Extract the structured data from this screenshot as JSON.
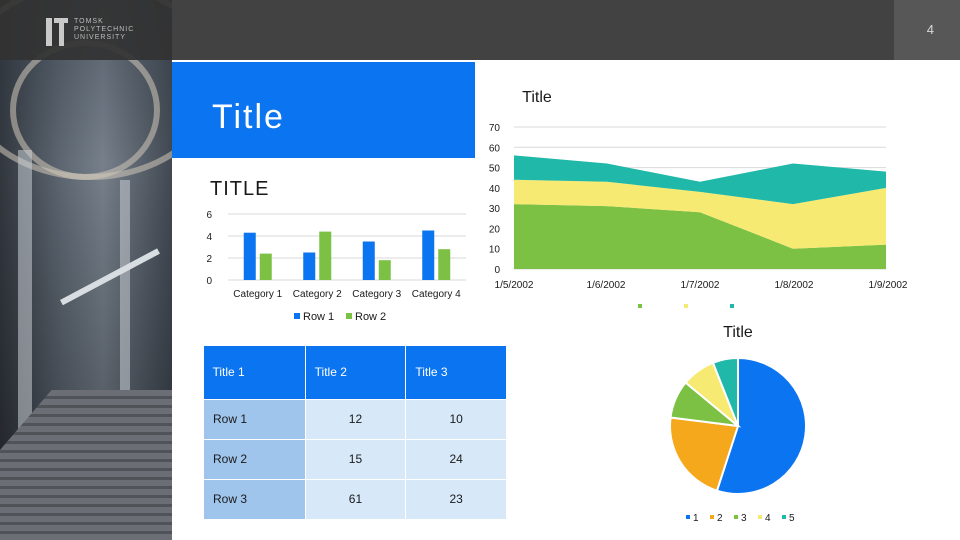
{
  "header": {
    "page_number": "4",
    "logo_text": [
      "TOMSK",
      "POLYTECHNIC",
      "UNIVERSITY"
    ]
  },
  "title_panel": {
    "title": "Title"
  },
  "bar_chart": {
    "title": "TITLE",
    "legend": [
      "Row 1",
      "Row 2"
    ]
  },
  "table": {
    "headers": [
      "Title 1",
      "Title 2",
      "Title 3"
    ],
    "rows": [
      {
        "label": "Row 1",
        "v1": "12",
        "v2": "10"
      },
      {
        "label": "Row 2",
        "v1": "15",
        "v2": "24"
      },
      {
        "label": "Row 3",
        "v1": "61",
        "v2": "23"
      }
    ]
  },
  "colors": {
    "accent_blue": "#0b74f0",
    "row2_green": "#7cc144",
    "area_green": "#7cc144",
    "area_yellow": "#f6ea72",
    "area_teal": "#20b8a8",
    "pie_orange": "#f5a81c"
  },
  "chart_data": [
    {
      "type": "bar",
      "title": "TITLE",
      "categories": [
        "Category 1",
        "Category 2",
        "Category 3",
        "Category 4"
      ],
      "series": [
        {
          "name": "Row 1",
          "values": [
            4.3,
            2.5,
            3.5,
            4.5
          ]
        },
        {
          "name": "Row 2",
          "values": [
            2.4,
            4.4,
            1.8,
            2.8
          ]
        }
      ],
      "ylim": [
        0,
        6
      ],
      "yticks": [
        "0",
        "2",
        "4",
        "6"
      ],
      "grid": true,
      "legend": "bottom"
    },
    {
      "type": "area",
      "title": "Title",
      "x": [
        "1/5/2002",
        "1/6/2002",
        "1/7/2002",
        "1/8/2002",
        "1/9/2002"
      ],
      "series": [
        {
          "name": "",
          "values": [
            32,
            31,
            28,
            10,
            12
          ]
        },
        {
          "name": "",
          "values": [
            12,
            12,
            10,
            22,
            28
          ]
        },
        {
          "name": "",
          "values": [
            12,
            9,
            5,
            20,
            8
          ]
        }
      ],
      "ylim": [
        0,
        70
      ],
      "yticks": [
        "0",
        "10",
        "20",
        "30",
        "40",
        "50",
        "60",
        "70"
      ],
      "grid": true,
      "legend": "bottom"
    },
    {
      "type": "pie",
      "title": "Title",
      "labels": [
        "1",
        "2",
        "3",
        "4",
        "5"
      ],
      "values": [
        55,
        22,
        9,
        8,
        6
      ],
      "legend": "bottom"
    }
  ]
}
